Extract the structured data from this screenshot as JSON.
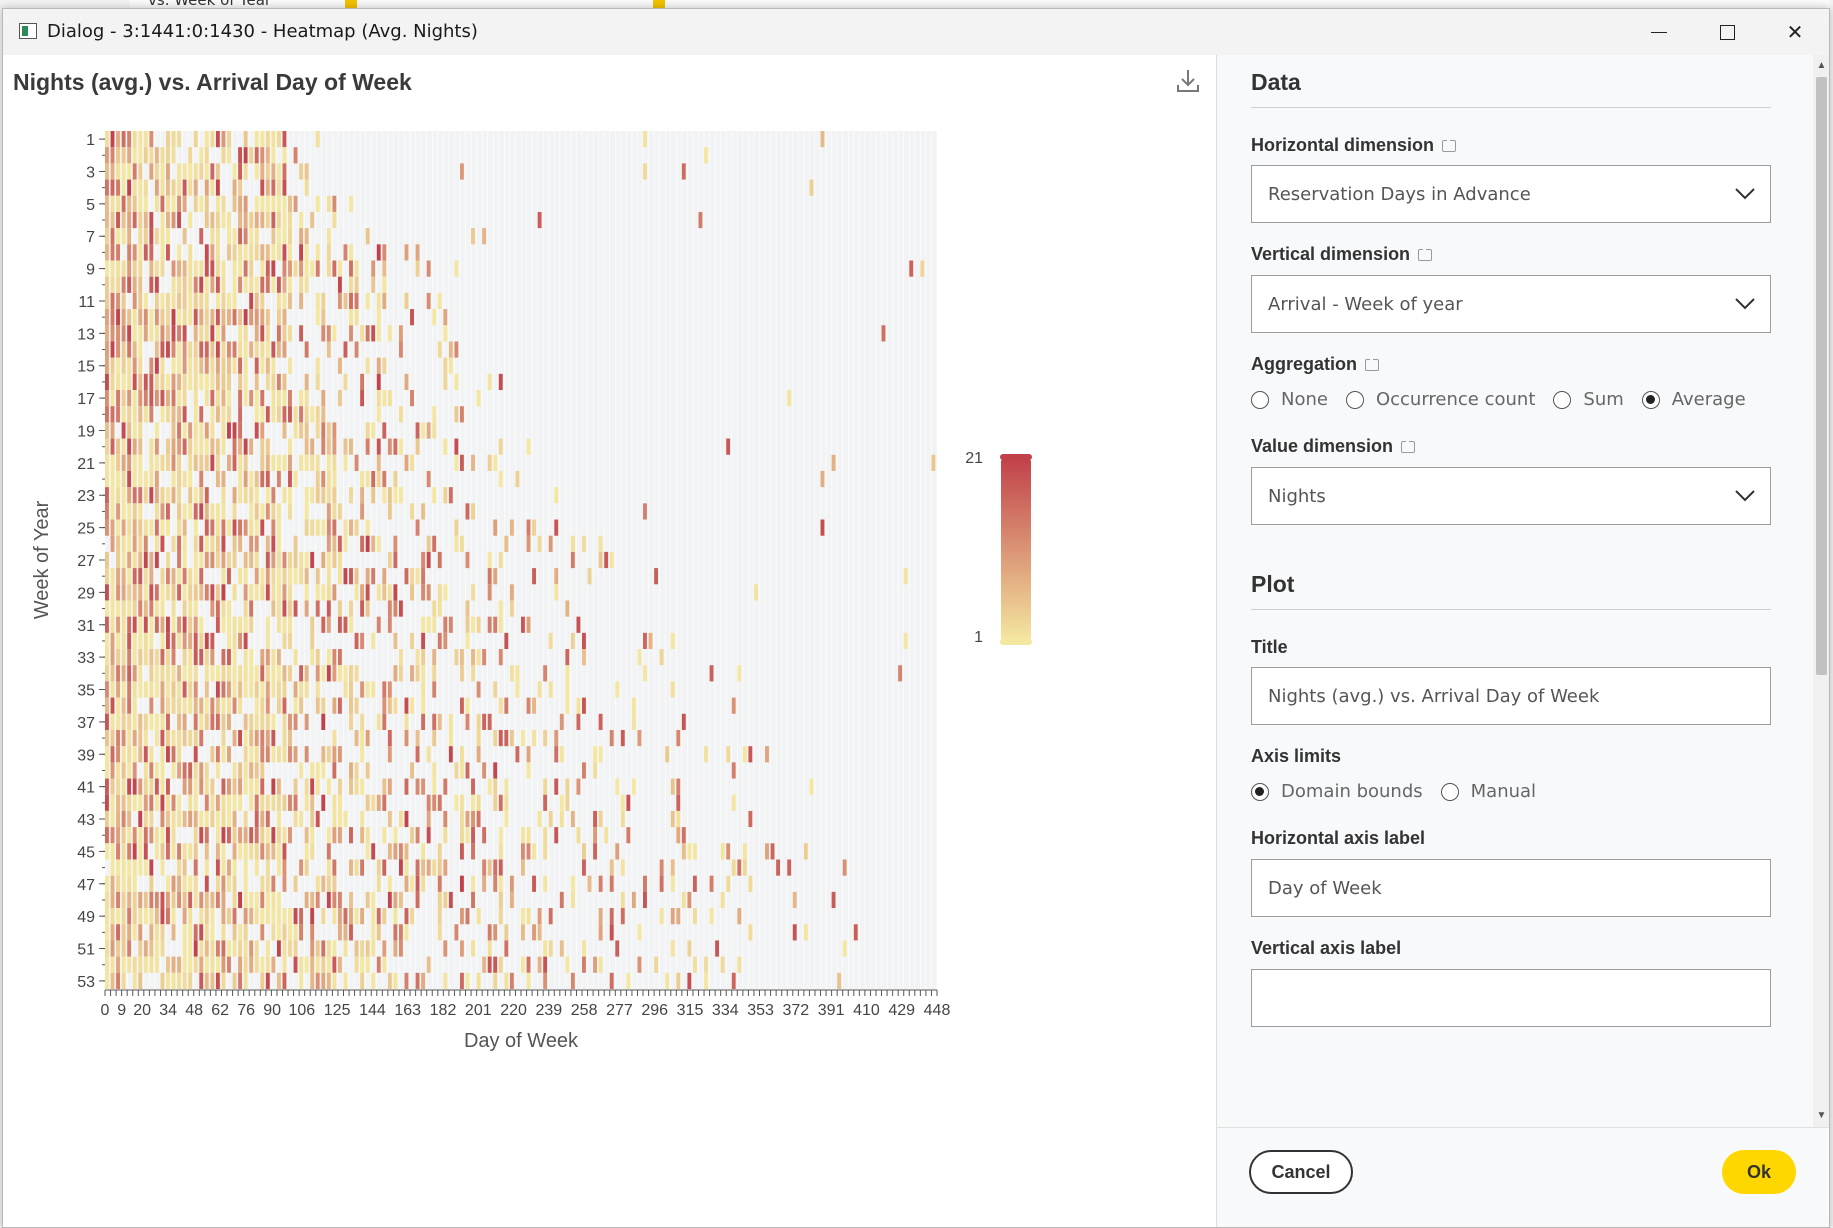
{
  "background": {
    "label": "vs. Week of Year"
  },
  "window": {
    "title": "Dialog - 3:1441:0:1430 - Heatmap (Avg. Nights)",
    "minimize_label": "–",
    "maximize_label": "□",
    "close_label": "✕"
  },
  "plot": {
    "title": "Nights (avg.) vs. Arrival Day of Week"
  },
  "chart_data": {
    "type": "heatmap",
    "title": "Nights (avg.) vs. Arrival Day of Week",
    "xlabel": "Day of Week",
    "ylabel": "Week of Year",
    "x_ticks": [
      0,
      9,
      20,
      34,
      48,
      62,
      76,
      90,
      106,
      125,
      144,
      163,
      182,
      201,
      220,
      239,
      258,
      277,
      296,
      315,
      334,
      353,
      372,
      391,
      410,
      429,
      448
    ],
    "y_ticks": [
      1,
      3,
      5,
      7,
      9,
      11,
      13,
      15,
      17,
      19,
      21,
      23,
      25,
      27,
      29,
      31,
      33,
      35,
      37,
      39,
      41,
      43,
      45,
      47,
      49,
      51,
      53
    ],
    "color_scale": {
      "min": 1,
      "max": 21,
      "min_color": "#f4e7a0",
      "max_color": "#c1414a",
      "empty_color": "#f2f3f4"
    },
    "colorbar_labels": {
      "max": "21",
      "min": "1"
    },
    "density_profile": {
      "x_range": [
        0,
        448
      ],
      "y_range": [
        1,
        53
      ],
      "dense_until": 100,
      "sparse_until_by_week": {
        "1": 95,
        "9": 190,
        "21": 250,
        "33": 330,
        "37": 380,
        "49": 400,
        "53": 445
      }
    }
  },
  "side": {
    "data_header": "Data",
    "horizontal_dimension": {
      "label": "Horizontal dimension",
      "value": "Reservation Days in Advance"
    },
    "vertical_dimension": {
      "label": "Vertical dimension",
      "value": "Arrival - Week of year"
    },
    "aggregation": {
      "label": "Aggregation",
      "options": [
        "None",
        "Occurrence count",
        "Sum",
        "Average"
      ],
      "selected": "Average"
    },
    "value_dimension": {
      "label": "Value dimension",
      "value": "Nights"
    },
    "plot_header": "Plot",
    "title_field": {
      "label": "Title",
      "value": "Nights (avg.) vs. Arrival Day of Week"
    },
    "axis_limits": {
      "label": "Axis limits",
      "options": [
        "Domain bounds",
        "Manual"
      ],
      "selected": "Domain bounds"
    },
    "horizontal_axis_label": {
      "label": "Horizontal axis label",
      "value": "Day of Week"
    },
    "vertical_axis_label": {
      "label": "Vertical axis label",
      "value": ""
    }
  },
  "footer": {
    "cancel_label": "Cancel",
    "ok_label": "Ok"
  }
}
